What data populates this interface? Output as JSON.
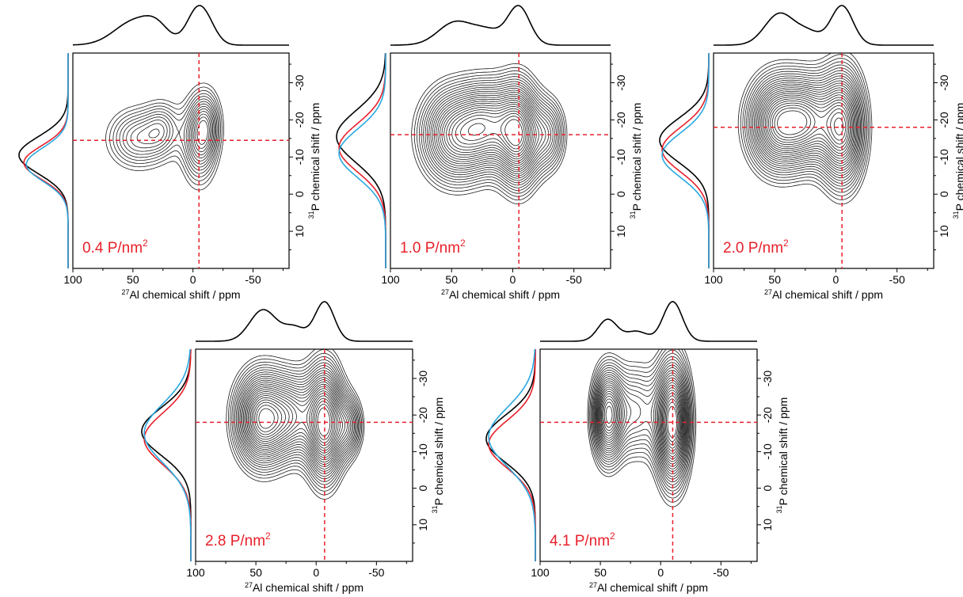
{
  "colors": {
    "axis": "#000000",
    "contour": "#1a1a1a",
    "guide": "#e8202a",
    "label": "#e8202a",
    "proj_black": "#000000",
    "proj_red": "#e8202a",
    "proj_blue": "#29a8e0"
  },
  "chart_data": [
    {
      "type": "contour",
      "sample_label": "0.4 P/nm",
      "sample_label_sup": "2",
      "xlabel_sup": "27",
      "xlabel": "Al chemical shift / ppm",
      "ylabel_sup": "31",
      "ylabel": "P chemical shift / ppm",
      "xlim": [
        100,
        -80
      ],
      "ylim": [
        20,
        -38
      ],
      "xticks": [
        "100",
        "50",
        "0",
        "-50"
      ],
      "yticks": [
        "-30",
        "-20",
        "-10",
        "0",
        "10"
      ],
      "guide_x": -5,
      "guide_y": -14.5,
      "peaks": [
        {
          "x": 46,
          "y": -15,
          "h": 0.85,
          "sx": 17,
          "sy": 5.5
        },
        {
          "x": 25,
          "y": -18,
          "h": 0.55,
          "sx": 10,
          "sy": 5
        },
        {
          "x": -5,
          "y": -14.5,
          "h": 1.0,
          "sx": 10,
          "sy": 8
        },
        {
          "x": -12,
          "y": -19,
          "h": 0.6,
          "sx": 8,
          "sy": 6
        }
      ],
      "contour_levels": 14,
      "f2_peaks": [
        {
          "x": 48,
          "h": 0.7,
          "w": 17
        },
        {
          "x": 30,
          "h": 0.35,
          "w": 10
        },
        {
          "x": -4,
          "h": 1.0,
          "w": 9
        },
        {
          "x": -14,
          "h": 0.25,
          "w": 8
        }
      ],
      "f1_projections": [
        {
          "color": "proj_black",
          "center": -10.5,
          "width": 5,
          "amp": 1.0
        },
        {
          "color": "proj_red",
          "center": -8.5,
          "width": 4.5,
          "amp": 0.9
        },
        {
          "color": "proj_blue",
          "center": -8.0,
          "width": 4.5,
          "amp": 0.85
        }
      ]
    },
    {
      "type": "contour",
      "sample_label": "1.0 P/nm",
      "sample_label_sup": "2",
      "xlabel_sup": "27",
      "xlabel": "Al chemical shift / ppm",
      "ylabel_sup": "31",
      "ylabel": "P chemical shift / ppm",
      "xlim": [
        100,
        -80
      ],
      "ylim": [
        20,
        -38
      ],
      "xticks": [
        "100",
        "50",
        "0",
        "-50"
      ],
      "yticks": [
        "-30",
        "-20",
        "-10",
        "0",
        "10"
      ],
      "guide_x": -5,
      "guide_y": -16,
      "peaks": [
        {
          "x": 47,
          "y": -16,
          "h": 0.9,
          "sx": 20,
          "sy": 9
        },
        {
          "x": 20,
          "y": -19,
          "h": 0.6,
          "sx": 14,
          "sy": 8
        },
        {
          "x": -5,
          "y": -16,
          "h": 1.0,
          "sx": 12,
          "sy": 10
        },
        {
          "x": -30,
          "y": -16,
          "h": 0.5,
          "sx": 10,
          "sy": 7
        }
      ],
      "contour_levels": 24,
      "f2_peaks": [
        {
          "x": 47,
          "h": 0.6,
          "w": 14
        },
        {
          "x": 20,
          "h": 0.35,
          "w": 12
        },
        {
          "x": -5,
          "h": 1.0,
          "w": 9
        }
      ],
      "f1_projections": [
        {
          "color": "proj_black",
          "center": -15.5,
          "width": 7,
          "amp": 1.0
        },
        {
          "color": "proj_red",
          "center": -12.5,
          "width": 6.5,
          "amp": 0.95
        },
        {
          "color": "proj_blue",
          "center": -11.0,
          "width": 6.5,
          "amp": 0.95
        }
      ]
    },
    {
      "type": "contour",
      "sample_label": "2.0 P/nm",
      "sample_label_sup": "2",
      "xlabel_sup": "27",
      "xlabel": "Al chemical shift / ppm",
      "ylabel_sup": "31",
      "ylabel": "P chemical shift / ppm",
      "xlim": [
        100,
        -80
      ],
      "ylim": [
        20,
        -38
      ],
      "xticks": [
        "100",
        "50",
        "0",
        "-50"
      ],
      "yticks": [
        "-30",
        "-20",
        "-10",
        "0",
        "10"
      ],
      "guide_x": -5,
      "guide_y": -18,
      "peaks": [
        {
          "x": 46,
          "y": -19,
          "h": 1.0,
          "sx": 18,
          "sy": 9
        },
        {
          "x": 22,
          "y": -20,
          "h": 0.5,
          "sx": 12,
          "sy": 8
        },
        {
          "x": -5,
          "y": -18,
          "h": 1.0,
          "sx": 13,
          "sy": 11
        }
      ],
      "contour_levels": 24,
      "f2_peaks": [
        {
          "x": 46,
          "h": 0.8,
          "w": 12
        },
        {
          "x": 22,
          "h": 0.3,
          "w": 10
        },
        {
          "x": -5,
          "h": 1.0,
          "w": 9
        }
      ],
      "f1_projections": [
        {
          "color": "proj_black",
          "center": -14.5,
          "width": 6,
          "amp": 1.0
        },
        {
          "color": "proj_red",
          "center": -12.0,
          "width": 6,
          "amp": 0.95
        },
        {
          "color": "proj_blue",
          "center": -10.5,
          "width": 6,
          "amp": 0.95
        }
      ]
    },
    {
      "type": "contour",
      "sample_label": "2.8 P/nm",
      "sample_label_sup": "2",
      "xlabel_sup": "27",
      "xlabel": "Al chemical shift / ppm",
      "ylabel_sup": "31",
      "ylabel": "P chemical shift / ppm",
      "xlim": [
        100,
        -80
      ],
      "ylim": [
        20,
        -38
      ],
      "xticks": [
        "100",
        "50",
        "0",
        "-50"
      ],
      "yticks": [
        "-30",
        "-20",
        "-10",
        "0",
        "10"
      ],
      "guide_x": -7,
      "guide_y": -18,
      "peaks": [
        {
          "x": 44,
          "y": -19,
          "h": 1.0,
          "sx": 16,
          "sy": 9
        },
        {
          "x": 18,
          "y": -20,
          "h": 0.45,
          "sx": 11,
          "sy": 8
        },
        {
          "x": -7,
          "y": -18,
          "h": 1.0,
          "sx": 11,
          "sy": 11
        },
        {
          "x": -28,
          "y": -17,
          "h": 0.45,
          "sx": 8,
          "sy": 6
        }
      ],
      "contour_levels": 24,
      "f2_peaks": [
        {
          "x": 44,
          "h": 0.8,
          "w": 11
        },
        {
          "x": 18,
          "h": 0.35,
          "w": 9
        },
        {
          "x": -7,
          "h": 1.0,
          "w": 8
        }
      ],
      "f1_projections": [
        {
          "color": "proj_black",
          "center": -15.5,
          "width": 6.5,
          "amp": 1.0
        },
        {
          "color": "proj_red",
          "center": -13.5,
          "width": 7,
          "amp": 0.95
        },
        {
          "color": "proj_blue",
          "center": -15.0,
          "width": 8,
          "amp": 0.95
        }
      ]
    },
    {
      "type": "contour",
      "sample_label": "4.1 P/nm",
      "sample_label_sup": "2",
      "xlabel_sup": "27",
      "xlabel": "Al chemical shift / ppm",
      "ylabel_sup": "31",
      "ylabel": "P chemical shift / ppm",
      "xlim": [
        100,
        -80
      ],
      "ylim": [
        20,
        -38
      ],
      "xticks": [
        "100",
        "50",
        "0",
        "-50"
      ],
      "yticks": [
        "-30",
        "-20",
        "-10",
        "0",
        "10"
      ],
      "guide_x": -10,
      "guide_y": -18,
      "peaks": [
        {
          "x": 44,
          "y": -20,
          "h": 0.85,
          "sx": 9,
          "sy": 9
        },
        {
          "x": 20,
          "y": -21,
          "h": 0.45,
          "sx": 12,
          "sy": 9
        },
        {
          "x": -10,
          "y": -18,
          "h": 1.0,
          "sx": 10,
          "sy": 12
        }
      ],
      "contour_levels": 24,
      "f2_peaks": [
        {
          "x": 44,
          "h": 0.55,
          "w": 8
        },
        {
          "x": 20,
          "h": 0.25,
          "w": 9
        },
        {
          "x": -10,
          "h": 1.0,
          "w": 8
        }
      ],
      "f1_projections": [
        {
          "color": "proj_black",
          "center": -13.5,
          "width": 6.5,
          "amp": 1.0
        },
        {
          "color": "proj_red",
          "center": -12.0,
          "width": 6.5,
          "amp": 0.95
        },
        {
          "color": "proj_blue",
          "center": -14.0,
          "width": 8,
          "amp": 0.95
        }
      ]
    }
  ]
}
